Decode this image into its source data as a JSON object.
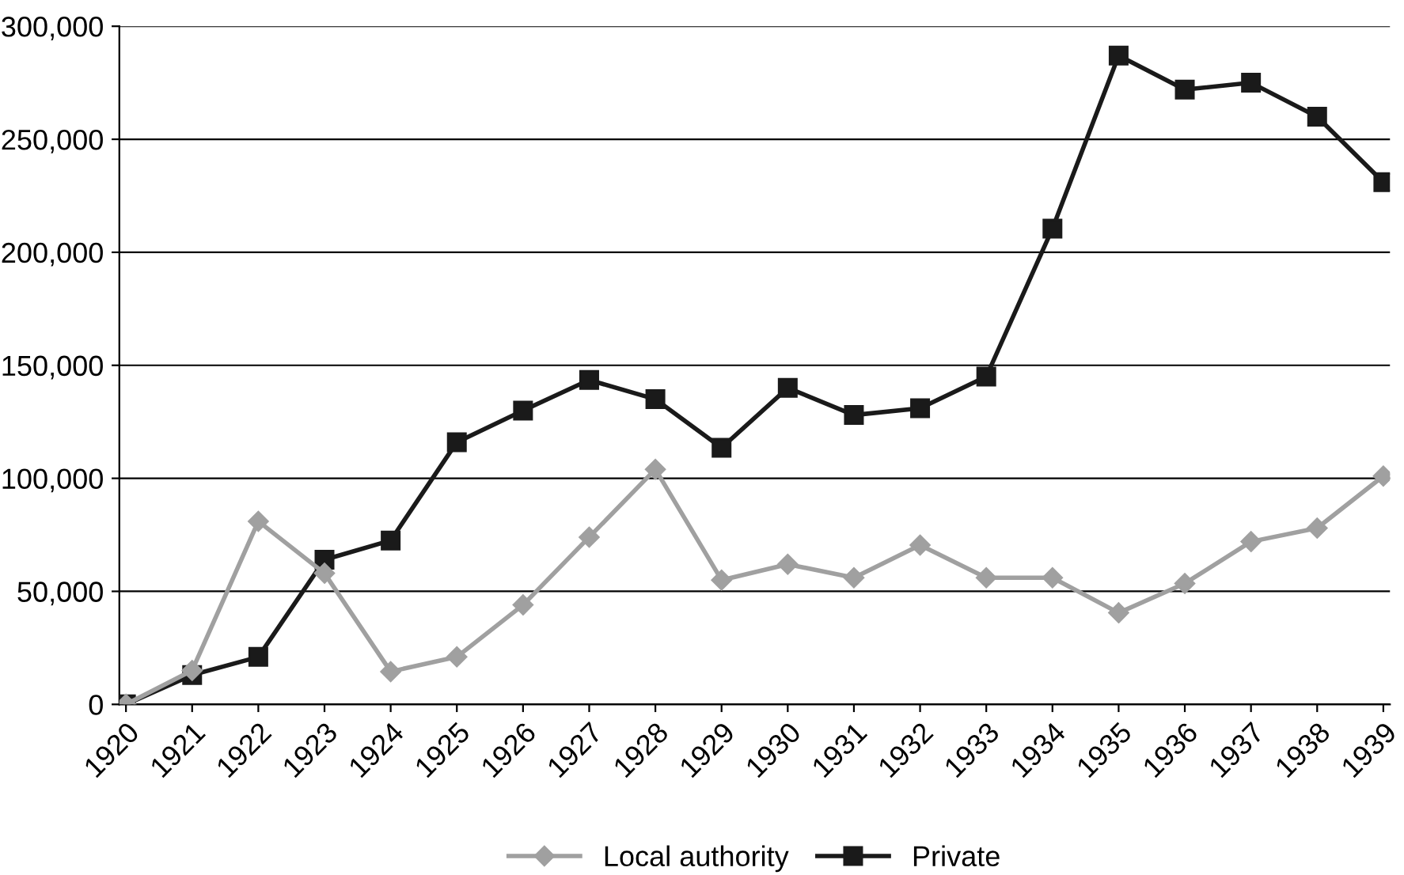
{
  "chart_data": {
    "type": "line",
    "categories": [
      "1920",
      "1921",
      "1922",
      "1923",
      "1924",
      "1925",
      "1926",
      "1927",
      "1928",
      "1929",
      "1930",
      "1931",
      "1932",
      "1933",
      "1934",
      "1935",
      "1936",
      "1937",
      "1938",
      "1939"
    ],
    "series": [
      {
        "name": "Local authority",
        "color": "#a0a0a0",
        "marker": "diamond",
        "values": [
          0,
          15000,
          81000,
          58000,
          14500,
          21000,
          44000,
          74000,
          104000,
          55000,
          62000,
          56000,
          70500,
          56000,
          56000,
          40500,
          53500,
          72000,
          78000,
          101000
        ]
      },
      {
        "name": "Private",
        "color": "#1a1a1a",
        "marker": "square",
        "values": [
          0,
          13000,
          21000,
          64000,
          72500,
          116000,
          130000,
          143500,
          135000,
          113500,
          140000,
          128000,
          131000,
          145000,
          210500,
          287000,
          272000,
          275000,
          260000,
          231000
        ]
      }
    ],
    "ylim": [
      0,
      300000
    ],
    "yticks": [
      {
        "value": 0,
        "label": "0"
      },
      {
        "value": 50000,
        "label": "50,000"
      },
      {
        "value": 100000,
        "label": "100,000"
      },
      {
        "value": 150000,
        "label": "150,000"
      },
      {
        "value": 200000,
        "label": "200,000"
      },
      {
        "value": 250000,
        "label": "250,000"
      },
      {
        "value": 300000,
        "label": "300,000"
      }
    ],
    "grid": "y",
    "legend": "bottom",
    "line_style": "solid"
  }
}
